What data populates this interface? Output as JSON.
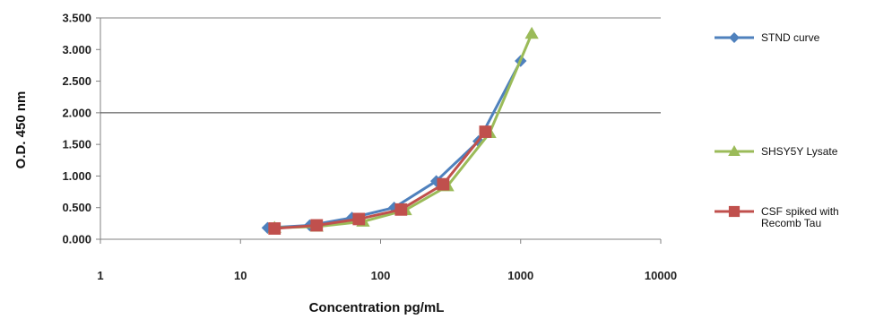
{
  "chart_data": {
    "type": "line",
    "xlabel": "Concentration pg/mL",
    "ylabel": "O.D. 450 nm",
    "xscale": "log",
    "xlim": [
      1,
      10000
    ],
    "ylim": [
      0,
      3.5
    ],
    "x_ticks": [
      "1",
      "10",
      "100",
      "1000",
      "10000"
    ],
    "y_ticks": [
      "0.000",
      "0.500",
      "1.000",
      "1.500",
      "2.000",
      "2.500",
      "3.000",
      "3.500"
    ],
    "grid": "horizontal line at 2.000 only",
    "legend_position": "right",
    "series": [
      {
        "name": "STND curve",
        "color": "#4f81bd",
        "marker": "diamond",
        "x": [
          15.6,
          31.2,
          62.5,
          125,
          250,
          500,
          1000
        ],
        "y": [
          0.18,
          0.22,
          0.34,
          0.5,
          0.92,
          1.55,
          2.82
        ]
      },
      {
        "name": "SHSY5Y Lysate",
        "color": "#9bbb59",
        "marker": "triangle",
        "x": [
          17.5,
          35,
          75,
          150,
          300,
          600,
          1200
        ],
        "y": [
          0.18,
          0.2,
          0.28,
          0.46,
          0.84,
          1.68,
          3.25
        ]
      },
      {
        "name": "CSF spiked with Recomb Tau",
        "name_lines": [
          "CSF spiked with",
          "Recomb Tau"
        ],
        "color": "#c0504d",
        "marker": "square",
        "x": [
          17.5,
          35,
          70,
          140,
          280,
          560
        ],
        "y": [
          0.17,
          0.22,
          0.32,
          0.47,
          0.87,
          1.7
        ]
      }
    ]
  }
}
